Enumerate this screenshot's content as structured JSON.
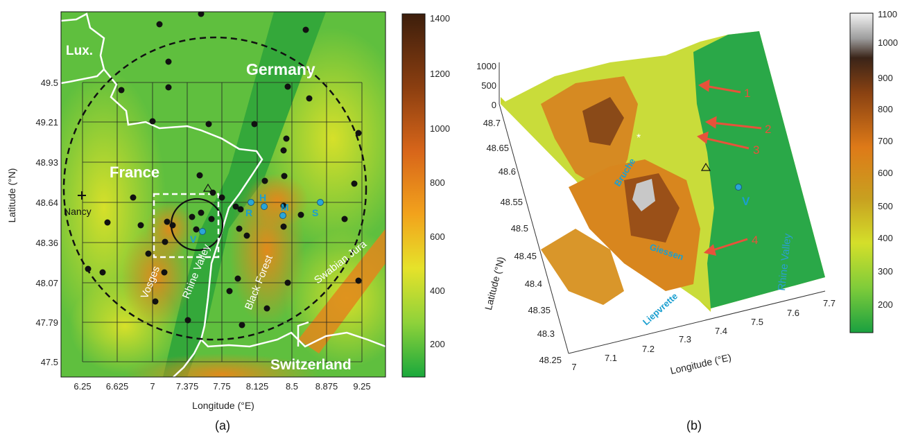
{
  "panel_a": {
    "label": "(a)",
    "xlabel": "Longitude (°E)",
    "ylabel": "Latitude (°N)",
    "xticks": [
      "6.25",
      "6.625",
      "7",
      "7.375",
      "7.75",
      "8.125",
      "8.5",
      "8.875",
      "9.25"
    ],
    "yticks": [
      "49.5",
      "49.21",
      "48.93",
      "48.64",
      "48.36",
      "48.07",
      "47.79",
      "47.5"
    ],
    "colorbar_ticks": [
      "1400",
      "1200",
      "1000",
      "800",
      "600",
      "400",
      "200"
    ],
    "countries": {
      "lux": "Lux.",
      "germany": "Germany",
      "france": "France",
      "switzerland": "Switzerland"
    },
    "city": "Nancy",
    "regions": {
      "vosges": "Vosges",
      "rhine_valley": "Rhine Valley",
      "black_forest": "Black Forest",
      "swabian_jura": "Swabian Jura"
    },
    "stations": {
      "v": "V",
      "r": "R",
      "h": "H",
      "m": "M",
      "s": "S"
    }
  },
  "panel_b": {
    "label": "(b)",
    "xlabel": "Longitude (°E)",
    "ylabel": "Latitude (°N)",
    "xticks": [
      "7",
      "7.1",
      "7.2",
      "7.3",
      "7.4",
      "7.5",
      "7.6",
      "7.7"
    ],
    "yticks": [
      "48.7",
      "48.65",
      "48.6",
      "48.55",
      "48.5",
      "48.45",
      "48.4",
      "48.35",
      "48.3",
      "48.25"
    ],
    "zticks": [
      "1000",
      "500",
      "0"
    ],
    "colorbar_ticks": [
      "1100",
      "1000",
      "900",
      "800",
      "700",
      "600",
      "500",
      "400",
      "300",
      "200"
    ],
    "labels": {
      "bruche": "Bruche",
      "giessen": "Giessen",
      "liepvrette": "Liepvrette",
      "rhine_valley": "Rhine Valley",
      "v": "V"
    },
    "arrows": [
      "1",
      "2",
      "3",
      "4"
    ]
  }
}
